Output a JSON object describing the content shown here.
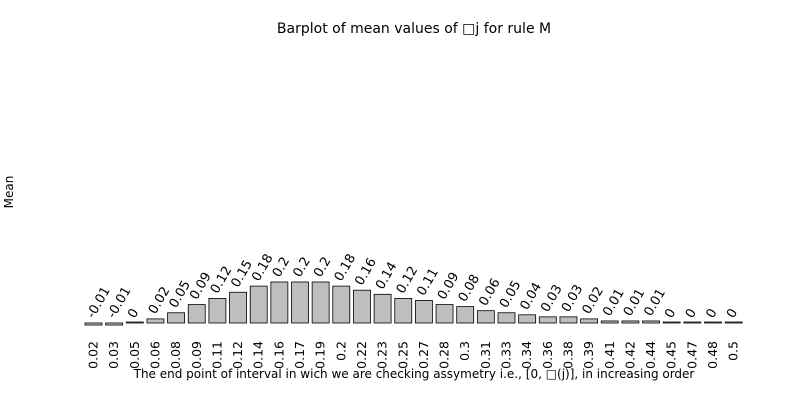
{
  "chart_data": {
    "type": "bar",
    "title": "Barplot of mean values of □j for rule M",
    "xlabel": "The end point of interval in wich we are checking assymetry i.e., [0, □(j)], in increasing order",
    "ylabel": "Mean",
    "categories": [
      "0.02",
      "0.03",
      "0.05",
      "0.06",
      "0.08",
      "0.09",
      "0.11",
      "0.12",
      "0.14",
      "0.16",
      "0.17",
      "0.19",
      "0.2",
      "0.22",
      "0.23",
      "0.25",
      "0.27",
      "0.28",
      "0.3",
      "0.31",
      "0.33",
      "0.34",
      "0.36",
      "0.38",
      "0.39",
      "0.41",
      "0.42",
      "0.44",
      "0.45",
      "0.47",
      "0.48",
      "0.5"
    ],
    "values": [
      -0.01,
      -0.01,
      0,
      0.02,
      0.05,
      0.09,
      0.12,
      0.15,
      0.18,
      0.2,
      0.2,
      0.2,
      0.18,
      0.16,
      0.14,
      0.12,
      0.11,
      0.09,
      0.08,
      0.06,
      0.05,
      0.04,
      0.03,
      0.03,
      0.02,
      0.01,
      0.01,
      0.01,
      0,
      0,
      0,
      0
    ],
    "value_labels": [
      "-0.01",
      "-0.01",
      "0",
      "0.02",
      "0.05",
      "0.09",
      "0.12",
      "0.15",
      "0.18",
      "0.2",
      "0.2",
      "0.2",
      "0.18",
      "0.16",
      "0.14",
      "0.12",
      "0.11",
      "0.09",
      "0.08",
      "0.06",
      "0.05",
      "0.04",
      "0.03",
      "0.03",
      "0.02",
      "0.01",
      "0.01",
      "0.01",
      "0",
      "0",
      "0",
      "0"
    ],
    "grid": false,
    "legend": "none",
    "colors": {
      "bar_fill": "#bebebe",
      "bar_edge": "#000000"
    }
  }
}
